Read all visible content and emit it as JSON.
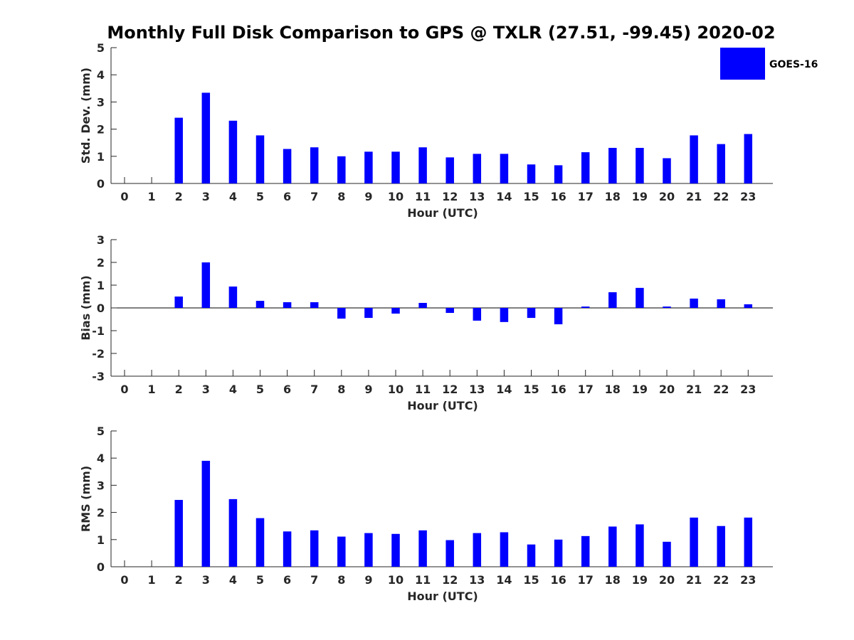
{
  "title": "Monthly Full Disk Comparison to GPS @ TXLR (27.51, -99.45) 2020-02",
  "legend": {
    "label": "GOES-16",
    "color": "#0000ff"
  },
  "chart_data": [
    {
      "type": "bar",
      "name": "std-dev",
      "ylabel": "Std. Dev. (mm)",
      "xlabel": "Hour (UTC)",
      "ylim": [
        0,
        5
      ],
      "yticks": [
        0,
        1,
        2,
        3,
        4,
        5
      ],
      "categories": [
        0,
        1,
        2,
        3,
        4,
        5,
        6,
        7,
        8,
        9,
        10,
        11,
        12,
        13,
        14,
        15,
        16,
        17,
        18,
        19,
        20,
        21,
        22,
        23
      ],
      "values": [
        null,
        null,
        2.42,
        3.34,
        2.31,
        1.77,
        1.27,
        1.33,
        1.0,
        1.17,
        1.17,
        1.33,
        0.96,
        1.09,
        1.09,
        0.7,
        0.67,
        1.15,
        1.31,
        1.31,
        0.93,
        1.77,
        1.45,
        1.82
      ],
      "color": "#0000ff",
      "legend": "top-right"
    },
    {
      "type": "bar",
      "name": "bias",
      "ylabel": "Bias (mm)",
      "xlabel": "Hour (UTC)",
      "ylim": [
        -3,
        3
      ],
      "yticks": [
        -3,
        -2,
        -1,
        0,
        1,
        2,
        3
      ],
      "categories": [
        0,
        1,
        2,
        3,
        4,
        5,
        6,
        7,
        8,
        9,
        10,
        11,
        12,
        13,
        14,
        15,
        16,
        17,
        18,
        19,
        20,
        21,
        22,
        23
      ],
      "values": [
        null,
        null,
        0.5,
        2.0,
        0.94,
        0.31,
        0.25,
        0.25,
        -0.47,
        -0.44,
        -0.25,
        0.22,
        -0.22,
        -0.56,
        -0.62,
        -0.44,
        -0.72,
        0.06,
        0.69,
        0.88,
        0.06,
        0.41,
        0.38,
        0.16
      ],
      "color": "#0000ff"
    },
    {
      "type": "bar",
      "name": "rms",
      "ylabel": "RMS (mm)",
      "xlabel": "Hour (UTC)",
      "ylim": [
        0,
        5
      ],
      "yticks": [
        0,
        1,
        2,
        3,
        4,
        5
      ],
      "categories": [
        0,
        1,
        2,
        3,
        4,
        5,
        6,
        7,
        8,
        9,
        10,
        11,
        12,
        13,
        14,
        15,
        16,
        17,
        18,
        19,
        20,
        21,
        22,
        23
      ],
      "values": [
        null,
        null,
        2.46,
        3.9,
        2.49,
        1.79,
        1.3,
        1.34,
        1.11,
        1.24,
        1.21,
        1.34,
        0.98,
        1.24,
        1.27,
        0.82,
        1.0,
        1.13,
        1.48,
        1.56,
        0.92,
        1.81,
        1.5,
        1.81
      ],
      "color": "#0000ff"
    }
  ]
}
